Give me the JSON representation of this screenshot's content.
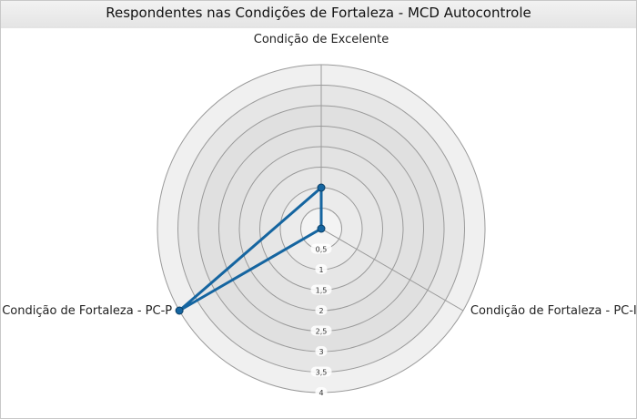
{
  "chart_data": {
    "type": "radar",
    "title": "Respondentes nas Condições de Fortaleza - MCD Autocontrole",
    "axes": [
      "Condição de Excelente",
      "Condição de Fortaleza - PC-I",
      "Condição de Fortaleza - PC-P"
    ],
    "ticks": [
      "0,5",
      "1",
      "1,5",
      "2",
      "2,5",
      "3",
      "3,5",
      "4"
    ],
    "rmax": 4,
    "series": [
      {
        "values": [
          1,
          0,
          4
        ]
      }
    ],
    "colors": {
      "line": "#1565a0",
      "point": "#1565a0"
    }
  }
}
